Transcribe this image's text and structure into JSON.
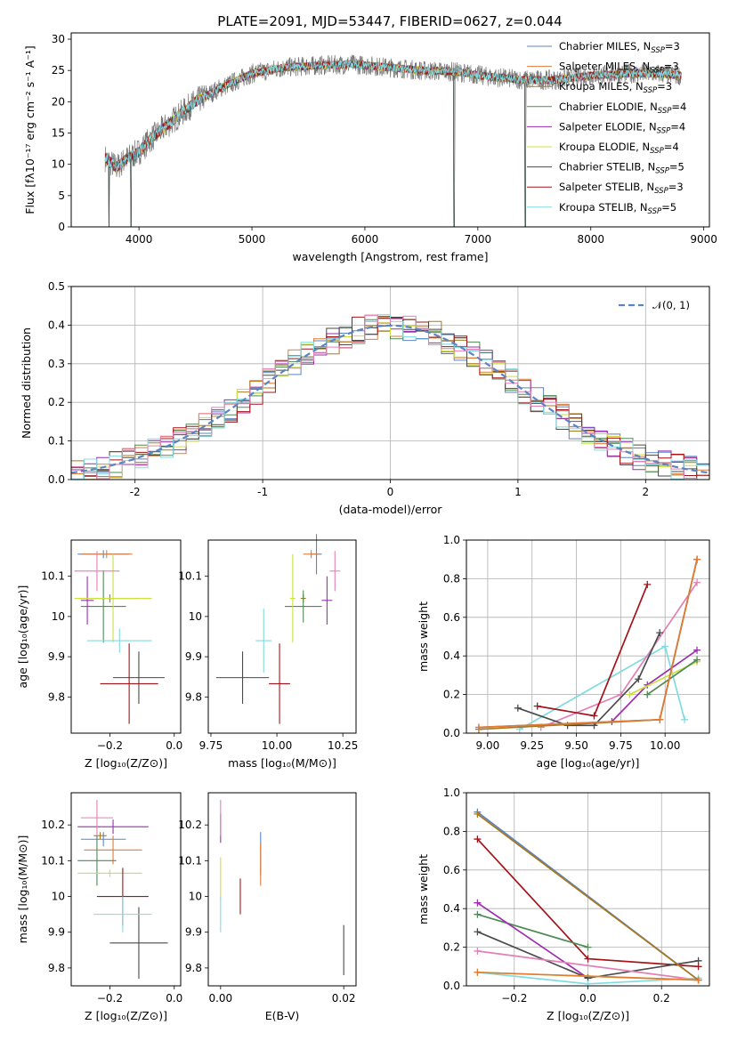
{
  "title": "PLATE=2091, MJD=53447, FIBERID=0627, z=0.044",
  "colors": {
    "chabrier_miles": "#5b84c4",
    "salpeter_miles": "#e17b34",
    "kroupa_miles": "#a8781e",
    "chabrier_elodie": "#4f8a55",
    "salpeter_elodie": "#9b2fae",
    "kroupa_elodie": "#cbe040",
    "chabrier_stelib": "#4a4a4a",
    "salpeter_stelib": "#a3141a",
    "kroupa_stelib": "#7fdbe0",
    "pink": "#e37fb4",
    "gaussian": "#5b84c4"
  },
  "legend": [
    {
      "name": "Chabrier MILES, N",
      "sub": "SSP",
      "eq": "=3",
      "color": "#5b84c4"
    },
    {
      "name": "Salpeter MILES, N",
      "sub": "SSP",
      "eq": "=3",
      "color": "#e17b34"
    },
    {
      "name": "Kroupa MILES, N",
      "sub": "SSP",
      "eq": "=3",
      "color": "#a8781e"
    },
    {
      "name": "Chabrier ELODIE, N",
      "sub": "SSP",
      "eq": "=4",
      "color": "#4f8a55"
    },
    {
      "name": "Salpeter ELODIE, N",
      "sub": "SSP",
      "eq": "=4",
      "color": "#9b2fae"
    },
    {
      "name": "Kroupa ELODIE, N",
      "sub": "SSP",
      "eq": "=4",
      "color": "#cbe040"
    },
    {
      "name": "Chabrier STELIB, N",
      "sub": "SSP",
      "eq": "=5",
      "color": "#4a4a4a"
    },
    {
      "name": "Salpeter STELIB, N",
      "sub": "SSP",
      "eq": "=3",
      "color": "#a3141a"
    },
    {
      "name": "Kroupa STELIB, N",
      "sub": "SSP",
      "eq": "=5",
      "color": "#7fdbe0"
    }
  ],
  "chart_data": [
    {
      "id": "spectrum",
      "type": "line",
      "xlabel": "wavelength [Angstrom, rest frame]",
      "ylabel": "Flux [fλ10⁻¹⁷ erg cm⁻² s⁻¹ A⁻¹]",
      "xlim": [
        3400,
        9050
      ],
      "ylim": [
        0,
        31
      ],
      "xticks": [
        4000,
        5000,
        6000,
        7000,
        8000,
        9000
      ],
      "yticks": [
        0,
        5,
        10,
        15,
        20,
        25,
        30
      ],
      "wavelength_range": [
        3700,
        8800
      ],
      "continuum_knots": {
        "x": [
          3700,
          3800,
          3900,
          4000,
          4100,
          4300,
          4500,
          4700,
          5000,
          5300,
          5600,
          5900,
          6200,
          6500,
          6800,
          7100,
          7400,
          7700,
          8000,
          8300,
          8600,
          8800
        ],
        "y": [
          11,
          9.5,
          11,
          12,
          14,
          17,
          20,
          22,
          24.5,
          25.5,
          25.8,
          26,
          25.5,
          25,
          24.8,
          24,
          23.5,
          23.5,
          24.2,
          24.5,
          24.5,
          24.2
        ]
      },
      "dips": [
        {
          "x": 3735,
          "y": 0
        },
        {
          "x": 3930,
          "y": 0
        },
        {
          "x": 6790,
          "y": 0
        },
        {
          "x": 7420,
          "y": 0
        }
      ]
    },
    {
      "id": "residuals",
      "type": "step",
      "xlabel": "(data-model)/error",
      "ylabel": "Normed distribution",
      "xlim": [
        -2.5,
        2.5
      ],
      "ylim": [
        0,
        0.5
      ],
      "xticks": [
        -2,
        -1,
        0,
        1,
        2
      ],
      "ytick_labels": [
        "0.0",
        "0.1",
        "0.2",
        "0.3",
        "0.4",
        "0.5"
      ],
      "grid": true,
      "legend_label": "𝒩(0, 1)",
      "legend_position": "top-right",
      "bin_width": 0.1
    },
    {
      "id": "z-age",
      "type": "errorbar",
      "xlabel": "Z [log₁₀(Z/Z⊙)]",
      "ylabel": "age  [log₁₀(age/yr)]",
      "xlim": [
        -0.32,
        0.02
      ],
      "ylim": [
        9.71,
        10.19
      ],
      "xticks": [
        -0.2,
        0.0
      ],
      "xtick_labels": [
        "−0.2",
        "0.0"
      ],
      "yticks": [
        9.8,
        9.9,
        10.0,
        10.1
      ],
      "xtick_labels2": [],
      "points": [
        {
          "x": -0.22,
          "y": 10.155,
          "xerr": 0.08,
          "yerr": 0.01,
          "color": "#5b84c4"
        },
        {
          "x": -0.21,
          "y": 10.155,
          "xerr": 0.08,
          "yerr": 0.01,
          "color": "#e17b34"
        },
        {
          "x": -0.2,
          "y": 10.045,
          "xerr": 0.09,
          "yerr": 0.01,
          "color": "#a8781e"
        },
        {
          "x": -0.22,
          "y": 10.025,
          "xerr": 0.07,
          "yerr": 0.09,
          "color": "#4f8a55"
        },
        {
          "x": -0.27,
          "y": 10.04,
          "xerr": 0.02,
          "yerr": 0.06,
          "color": "#9b2fae"
        },
        {
          "x": -0.19,
          "y": 10.045,
          "xerr": 0.12,
          "yerr": 0.11,
          "color": "#cbe040"
        },
        {
          "x": -0.11,
          "y": 9.848,
          "xerr": 0.08,
          "yerr": 0.065,
          "color": "#4a4a4a"
        },
        {
          "x": -0.14,
          "y": 9.833,
          "xerr": 0.09,
          "yerr": 0.1,
          "color": "#a3141a"
        },
        {
          "x": -0.17,
          "y": 9.94,
          "xerr": 0.1,
          "yerr": 0.03,
          "color": "#7fdbe0"
        },
        {
          "x": -0.24,
          "y": 10.113,
          "xerr": 0.07,
          "yerr": 0.05,
          "color": "#e37fb4"
        }
      ]
    },
    {
      "id": "mass-age",
      "type": "errorbar",
      "xlabel": "mass [log₁₀(M/M⊙)]",
      "ylabel": "",
      "xlim": [
        9.74,
        10.3
      ],
      "ylim": [
        9.71,
        10.19
      ],
      "xticks": [
        9.75,
        10.0,
        10.25
      ],
      "xtick_labels": [
        "9.75",
        "10.00",
        "10.25"
      ],
      "yticks": [
        9.8,
        9.9,
        10.0,
        10.1
      ],
      "points": [
        {
          "x": 10.15,
          "y": 10.155,
          "xerr": 0.02,
          "yerr": 0.05,
          "color": "#5b84c4"
        },
        {
          "x": 10.13,
          "y": 10.155,
          "xerr": 0.03,
          "yerr": 0.01,
          "color": "#e17b34"
        },
        {
          "x": 10.1,
          "y": 10.045,
          "xerr": 0.01,
          "yerr": 0.01,
          "color": "#a8781e"
        },
        {
          "x": 10.1,
          "y": 10.025,
          "xerr": 0.07,
          "yerr": 0.04,
          "color": "#4f8a55"
        },
        {
          "x": 10.19,
          "y": 10.04,
          "xerr": 0.02,
          "yerr": 0.06,
          "color": "#9b2fae"
        },
        {
          "x": 10.06,
          "y": 10.045,
          "xerr": 0.01,
          "yerr": 0.11,
          "color": "#cbe040"
        },
        {
          "x": 9.87,
          "y": 9.848,
          "xerr": 0.1,
          "yerr": 0.065,
          "color": "#4a4a4a"
        },
        {
          "x": 10.01,
          "y": 9.833,
          "xerr": 0.04,
          "yerr": 0.1,
          "color": "#a3141a"
        },
        {
          "x": 9.95,
          "y": 9.94,
          "xerr": 0.03,
          "yerr": 0.08,
          "color": "#7fdbe0"
        },
        {
          "x": 10.22,
          "y": 10.113,
          "xerr": 0.02,
          "yerr": 0.05,
          "color": "#e37fb4"
        }
      ]
    },
    {
      "id": "age-weight",
      "type": "line",
      "xlabel": "age  [log₁₀(age/yr)]",
      "ylabel": "mass weight",
      "xlim": [
        8.88,
        10.25
      ],
      "ylim": [
        0,
        1
      ],
      "xticks": [
        9.0,
        9.25,
        9.5,
        9.75,
        10.0
      ],
      "xtick_labels": [
        "9.00",
        "9.25",
        "9.50",
        "9.75",
        "10.00"
      ],
      "ytick_labels": [
        "0.0",
        "0.2",
        "0.4",
        "0.6",
        "0.8",
        "1.0"
      ],
      "grid": true,
      "series": [
        {
          "color": "#7fdbe0",
          "x": [
            9.18,
            10.0,
            10.11
          ],
          "y": [
            0.02,
            0.45,
            0.07
          ]
        },
        {
          "color": "#e37fb4",
          "x": [
            9.3,
            9.75,
            10.18
          ],
          "y": [
            0.03,
            0.2,
            0.78
          ]
        },
        {
          "color": "#4a4a4a",
          "x": [
            9.17,
            9.45,
            9.6,
            9.85,
            9.97
          ],
          "y": [
            0.13,
            0.04,
            0.04,
            0.28,
            0.52
          ]
        },
        {
          "color": "#a3141a",
          "x": [
            9.28,
            9.6,
            9.9
          ],
          "y": [
            0.14,
            0.09,
            0.77
          ]
        },
        {
          "color": "#9b2fae",
          "x": [
            9.7,
            9.9,
            10.18
          ],
          "y": [
            0.06,
            0.25,
            0.43
          ]
        },
        {
          "color": "#cbe040",
          "x": [
            9.8,
            10.18
          ],
          "y": [
            0.2,
            0.37
          ]
        },
        {
          "color": "#4f8a55",
          "x": [
            9.9,
            10.18
          ],
          "y": [
            0.2,
            0.38
          ]
        },
        {
          "color": "#5b84c4",
          "x": [
            8.95,
            9.97,
            10.18
          ],
          "y": [
            0.03,
            0.07,
            0.9
          ]
        },
        {
          "color": "#a8781e",
          "x": [
            8.95,
            9.97,
            10.18
          ],
          "y": [
            0.02,
            0.07,
            0.9
          ]
        },
        {
          "color": "#e17b34",
          "x": [
            8.95,
            9.97,
            10.18
          ],
          "y": [
            0.03,
            0.07,
            0.9
          ]
        }
      ]
    },
    {
      "id": "z-mass",
      "type": "errorbar",
      "xlabel": "Z [log₁₀(Z/Z⊙)]",
      "ylabel": "mass [log₁₀(M/M⊙)]",
      "xlim": [
        -0.32,
        0.02
      ],
      "ylim": [
        9.75,
        10.29
      ],
      "xticks": [
        -0.2,
        0.0
      ],
      "xtick_labels": [
        "−0.2",
        "0.0"
      ],
      "yticks": [
        9.8,
        9.9,
        10.0,
        10.1,
        10.2
      ],
      "points": [
        {
          "x": -0.22,
          "y": 10.16,
          "xerr": 0.07,
          "yerr": 0.02,
          "color": "#5b84c4"
        },
        {
          "x": -0.19,
          "y": 10.13,
          "xerr": 0.09,
          "yerr": 0.04,
          "color": "#e17b34"
        },
        {
          "x": -0.23,
          "y": 10.17,
          "xerr": 0.02,
          "yerr": 0.01,
          "color": "#a8781e"
        },
        {
          "x": -0.24,
          "y": 10.1,
          "xerr": 0.06,
          "yerr": 0.07,
          "color": "#4f8a55"
        },
        {
          "x": -0.19,
          "y": 10.195,
          "xerr": 0.11,
          "yerr": 0.02,
          "color": "#9b2fae"
        },
        {
          "x": -0.2,
          "y": 10.065,
          "xerr": 0.1,
          "yerr": 0.01,
          "color": "#cbe040"
        },
        {
          "x": -0.11,
          "y": 9.87,
          "xerr": 0.09,
          "yerr": 0.1,
          "color": "#4a4a4a"
        },
        {
          "x": -0.16,
          "y": 10.0,
          "xerr": 0.08,
          "yerr": 0.08,
          "color": "#a3141a"
        },
        {
          "x": -0.16,
          "y": 9.95,
          "xerr": 0.09,
          "yerr": 0.05,
          "color": "#7fdbe0"
        },
        {
          "x": -0.24,
          "y": 10.22,
          "xerr": 0.05,
          "yerr": 0.05,
          "color": "#e37fb4"
        }
      ]
    },
    {
      "id": "ebv-mass",
      "type": "errorbar",
      "xlabel": "E(B-V)",
      "ylabel": "",
      "xlim": [
        -0.002,
        0.022
      ],
      "ylim": [
        9.75,
        10.29
      ],
      "xticks": [
        0.0,
        0.02
      ],
      "xtick_labels": [
        "0.00",
        "0.02"
      ],
      "yticks": [
        9.8,
        9.9,
        10.0,
        10.1,
        10.2
      ],
      "points": [
        {
          "x": 0.0,
          "y": 10.19,
          "xerr": 0,
          "yerr": 0.04,
          "color": "#9b2fae"
        },
        {
          "x": 0.0,
          "y": 10.22,
          "xerr": 0,
          "yerr": 0.05,
          "color": "#e37fb4"
        },
        {
          "x": 0.0,
          "y": 10.05,
          "xerr": 0,
          "yerr": 0.06,
          "color": "#cbe040"
        },
        {
          "x": 0.0,
          "y": 9.95,
          "xerr": 0,
          "yerr": 0.05,
          "color": "#7fdbe0"
        },
        {
          "x": 0.0065,
          "y": 10.12,
          "xerr": 0,
          "yerr": 0.06,
          "color": "#5b84c4"
        },
        {
          "x": 0.0065,
          "y": 10.09,
          "xerr": 0,
          "yerr": 0.06,
          "color": "#e17b34"
        },
        {
          "x": 0.0032,
          "y": 10.0,
          "xerr": 0,
          "yerr": 0.05,
          "color": "#a3141a"
        },
        {
          "x": 0.02,
          "y": 9.85,
          "xerr": 0,
          "yerr": 0.07,
          "color": "#4a4a4a"
        }
      ]
    },
    {
      "id": "z-weight",
      "type": "line",
      "xlabel": "Z [log₁₀(Z/Z⊙)]",
      "ylabel": "mass weight",
      "xlim": [
        -0.33,
        0.33
      ],
      "ylim": [
        0,
        1
      ],
      "xticks": [
        -0.2,
        0.0,
        0.2
      ],
      "xtick_labels": [
        "−0.2",
        "0.0",
        "0.2"
      ],
      "ytick_labels": [
        "0.0",
        "0.2",
        "0.4",
        "0.6",
        "0.8",
        "1.0"
      ],
      "grid": true,
      "series": [
        {
          "color": "#a3141a",
          "x": [
            -0.3,
            0.0,
            0.3
          ],
          "y": [
            0.76,
            0.14,
            0.1
          ]
        },
        {
          "color": "#4f8a55",
          "x": [
            -0.3,
            0.0
          ],
          "y": [
            0.37,
            0.2
          ]
        },
        {
          "color": "#9b2fae",
          "x": [
            -0.3,
            0.0
          ],
          "y": [
            0.43,
            0.04
          ]
        },
        {
          "color": "#4a4a4a",
          "x": [
            -0.3,
            0.0,
            0.3
          ],
          "y": [
            0.28,
            0.04,
            0.13
          ]
        },
        {
          "color": "#e37fb4",
          "x": [
            -0.3,
            0.3
          ],
          "y": [
            0.18,
            0.03
          ]
        },
        {
          "color": "#7fdbe0",
          "x": [
            -0.3,
            0.0,
            0.3
          ],
          "y": [
            0.07,
            0.01,
            0.04
          ]
        },
        {
          "color": "#cbe040",
          "x": [
            -0.3,
            0.3
          ],
          "y": [
            0.07,
            0.03
          ]
        },
        {
          "color": "#5b84c4",
          "x": [
            -0.3,
            0.3
          ],
          "y": [
            0.9,
            0.03
          ]
        },
        {
          "color": "#a8781e",
          "x": [
            -0.3,
            0.3
          ],
          "y": [
            0.89,
            0.03
          ]
        },
        {
          "color": "#e17b34",
          "x": [
            -0.3,
            0.3
          ],
          "y": [
            0.07,
            0.03
          ]
        }
      ]
    }
  ]
}
